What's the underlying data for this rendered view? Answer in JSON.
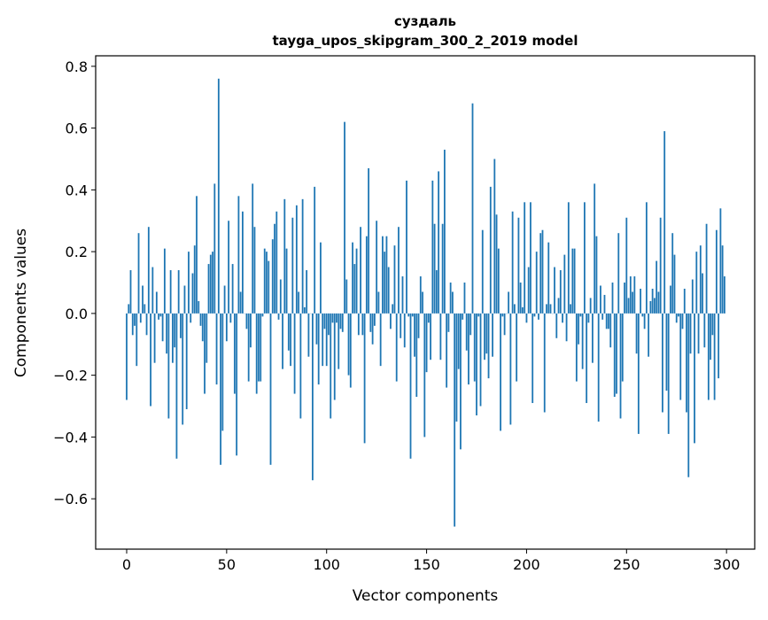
{
  "chart_data": {
    "type": "bar",
    "title": "суздаль",
    "subtitle": "tayga_upos_skipgram_300_2_2019 model",
    "xlabel": "Vector components",
    "ylabel": "Components values",
    "xlim": [
      -15.5,
      314.1
    ],
    "ylim": [
      -0.763,
      0.834
    ],
    "xticks": [
      0,
      50,
      100,
      150,
      200,
      250,
      300
    ],
    "yticks": [
      -0.6,
      -0.4,
      -0.2,
      0.0,
      0.2,
      0.4,
      0.6,
      0.8
    ],
    "ytick_labels": [
      "−0.6",
      "−0.4",
      "−0.2",
      "0.0",
      "0.2",
      "0.4",
      "0.6",
      "0.8"
    ],
    "xtick_labels": [
      "0",
      "50",
      "100",
      "150",
      "200",
      "250",
      "300"
    ],
    "grid": false,
    "bar_color": "#1f77b4",
    "values": [
      -0.28,
      0.03,
      0.14,
      -0.07,
      -0.04,
      -0.17,
      0.26,
      -0.03,
      0.09,
      0.03,
      -0.07,
      0.28,
      -0.3,
      0.15,
      -0.16,
      0.07,
      -0.02,
      -0.01,
      -0.09,
      0.21,
      -0.13,
      -0.34,
      0.14,
      -0.16,
      -0.11,
      -0.47,
      0.14,
      -0.08,
      -0.36,
      0.09,
      -0.31,
      0.2,
      -0.03,
      0.13,
      0.22,
      0.38,
      0.04,
      -0.04,
      -0.09,
      -0.26,
      -0.16,
      0.16,
      0.19,
      0.2,
      0.42,
      -0.23,
      0.76,
      -0.49,
      -0.38,
      0.09,
      -0.09,
      0.3,
      -0.03,
      0.16,
      -0.26,
      -0.46,
      0.38,
      0.07,
      0.33,
      0.0,
      -0.05,
      -0.22,
      -0.11,
      0.42,
      0.28,
      -0.26,
      -0.22,
      -0.22,
      -0.01,
      0.21,
      0.2,
      0.17,
      -0.49,
      0.24,
      0.29,
      0.33,
      -0.02,
      0.11,
      -0.18,
      0.37,
      0.21,
      -0.12,
      -0.17,
      0.31,
      -0.26,
      0.35,
      0.07,
      -0.34,
      0.37,
      0.02,
      0.14,
      -0.14,
      0.0,
      -0.54,
      0.41,
      -0.1,
      -0.23,
      0.23,
      -0.17,
      -0.05,
      -0.17,
      -0.07,
      -0.34,
      -0.03,
      -0.28,
      -0.03,
      -0.18,
      -0.05,
      -0.06,
      0.62,
      0.11,
      -0.2,
      -0.24,
      0.23,
      0.16,
      0.21,
      -0.07,
      0.28,
      -0.07,
      -0.42,
      0.25,
      0.47,
      -0.06,
      -0.1,
      -0.04,
      0.3,
      0.07,
      -0.17,
      0.25,
      0.2,
      0.25,
      0.15,
      -0.05,
      0.03,
      0.22,
      -0.22,
      0.28,
      -0.08,
      0.12,
      -0.11,
      0.43,
      -0.01,
      -0.47,
      -0.01,
      -0.14,
      -0.27,
      -0.08,
      0.12,
      0.07,
      -0.4,
      -0.19,
      -0.03,
      -0.15,
      0.43,
      0.29,
      0.14,
      0.46,
      -0.15,
      0.29,
      0.53,
      -0.24,
      -0.06,
      0.1,
      0.07,
      -0.69,
      -0.35,
      -0.18,
      -0.44,
      -0.02,
      0.1,
      -0.12,
      -0.23,
      -0.07,
      0.68,
      -0.22,
      -0.33,
      -0.01,
      -0.3,
      0.27,
      -0.15,
      -0.13,
      -0.21,
      0.41,
      -0.14,
      0.5,
      0.32,
      0.21,
      -0.38,
      -0.01,
      -0.07,
      0.0,
      0.07,
      -0.36,
      0.33,
      0.03,
      -0.22,
      0.31,
      0.1,
      0.02,
      0.36,
      -0.03,
      0.15,
      0.36,
      -0.29,
      -0.01,
      0.2,
      -0.02,
      0.26,
      0.27,
      -0.32,
      0.03,
      0.23,
      0.03,
      0.0,
      0.15,
      -0.08,
      0.05,
      0.14,
      -0.03,
      0.19,
      -0.09,
      0.36,
      0.03,
      0.21,
      0.21,
      -0.22,
      -0.1,
      -0.01,
      -0.18,
      0.36,
      -0.29,
      -0.03,
      0.05,
      -0.16,
      0.42,
      0.25,
      -0.35,
      0.09,
      -0.02,
      0.06,
      -0.05,
      -0.05,
      -0.11,
      0.1,
      -0.27,
      -0.26,
      0.26,
      -0.34,
      -0.22,
      0.1,
      0.31,
      0.05,
      0.12,
      0.07,
      0.12,
      -0.13,
      -0.39,
      0.08,
      -0.01,
      -0.05,
      0.36,
      -0.14,
      0.04,
      0.08,
      0.05,
      0.17,
      0.07,
      0.31,
      -0.32,
      0.59,
      -0.25,
      -0.39,
      0.09,
      0.26,
      0.19,
      -0.03,
      -0.01,
      -0.28,
      -0.05,
      0.08,
      -0.32,
      -0.53,
      -0.13,
      0.11,
      -0.42,
      0.2,
      -0.13,
      0.22,
      0.13,
      -0.11,
      0.29,
      -0.28,
      -0.15,
      -0.07,
      -0.28,
      0.27,
      -0.21,
      0.34,
      0.22,
      0.12
    ]
  }
}
